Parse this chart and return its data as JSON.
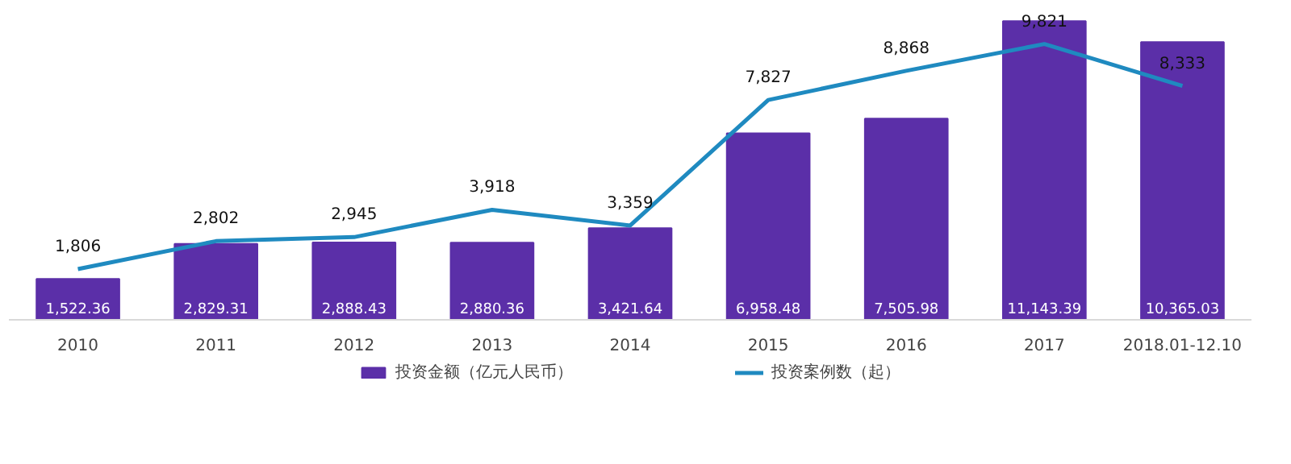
{
  "chart_data": {
    "type": "bar",
    "categories": [
      "2010",
      "2011",
      "2012",
      "2013",
      "2014",
      "2015",
      "2016",
      "2017",
      "2018.01-12.10"
    ],
    "series": [
      {
        "name": "投资金额（亿元人民币）",
        "color": "#5b2fa8",
        "values": [
          1522.36,
          2829.31,
          2888.43,
          2880.36,
          3421.64,
          6958.48,
          7505.98,
          11143.39,
          10365.03
        ],
        "value_labels": [
          "1,522.36",
          "2,829.31",
          "2,888.43",
          "2,880.36",
          "3,421.64",
          "6,958.48",
          "7,505.98",
          "11,143.39",
          "10,365.03"
        ]
      },
      {
        "name": "投资案例数（起）",
        "type": "line",
        "axis": "y2",
        "color": "#1f8ac0",
        "values": [
          1806,
          2802,
          2945,
          3918,
          3359,
          7827,
          8868,
          9821,
          8333
        ],
        "value_labels": [
          "1,806",
          "2,802",
          "2,945",
          "3,918",
          "3,359",
          "7,827",
          "8,868",
          "9,821",
          "8,333"
        ]
      }
    ],
    "grid": false,
    "legend": "bottom",
    "tick_labels": "x",
    "marker": "none"
  }
}
